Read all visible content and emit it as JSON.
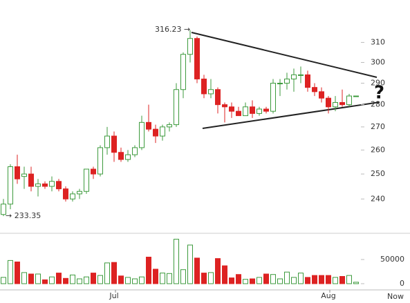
{
  "chart_data": {
    "type": "candlestick",
    "categories": [
      null,
      null,
      null,
      null,
      null,
      null,
      null,
      null,
      null,
      null,
      null,
      null,
      null,
      null,
      null,
      null,
      "Jul",
      null,
      null,
      null,
      null,
      null,
      null,
      null,
      null,
      null,
      null,
      null,
      null,
      null,
      null,
      null,
      null,
      null,
      null,
      null,
      null,
      null,
      null,
      null,
      null,
      null,
      null,
      null,
      null,
      null,
      null,
      "Aug",
      null,
      null,
      null,
      null
    ],
    "x_end_label": "Now",
    "open": [
      234,
      238,
      253,
      249,
      250,
      245,
      246,
      245,
      247,
      244,
      240,
      242,
      243,
      252,
      250,
      261,
      266,
      259,
      256,
      258,
      261,
      272,
      269,
      266,
      270,
      271,
      287,
      304,
      312,
      292,
      285,
      287,
      280,
      279,
      277,
      275,
      279,
      276,
      278,
      277,
      290,
      290,
      292,
      294,
      294,
      288,
      286,
      283,
      279,
      281,
      280,
      284
    ],
    "high": [
      240,
      254,
      258,
      253,
      253,
      248,
      247,
      249,
      248,
      245,
      243,
      244,
      252,
      253,
      262,
      270,
      268,
      261,
      260,
      262,
      275,
      280,
      271,
      271,
      272,
      290,
      305,
      316.23,
      313,
      294,
      292,
      288,
      281,
      281,
      279,
      281,
      282,
      279,
      279,
      292,
      292,
      295,
      297,
      298,
      296,
      290,
      288,
      284,
      284,
      287,
      285,
      284
    ],
    "low": [
      233.35,
      236,
      246,
      244,
      243,
      241,
      244,
      243,
      243,
      239,
      239,
      240,
      242,
      248,
      249,
      258,
      255,
      255,
      255,
      257,
      260,
      268,
      263,
      264,
      268,
      270,
      283,
      300,
      290,
      283,
      283,
      276,
      272,
      274,
      275,
      275,
      274,
      275,
      276,
      276,
      284,
      287,
      286,
      290,
      286,
      284,
      281,
      276,
      277,
      279,
      279,
      284
    ],
    "close": [
      238,
      253,
      248,
      250,
      245,
      246,
      245,
      247,
      244,
      240,
      242,
      243,
      252,
      250,
      261,
      266,
      259,
      256,
      258,
      261,
      272,
      269,
      266,
      270,
      271,
      287,
      304,
      312,
      292,
      285,
      287,
      280,
      279,
      277,
      275,
      279,
      276,
      278,
      277,
      290,
      290,
      292,
      294,
      294,
      288,
      286,
      283,
      279,
      281,
      280,
      284,
      284
    ],
    "volume": [
      13000,
      48000,
      45000,
      23000,
      20000,
      20000,
      8000,
      14000,
      22000,
      11000,
      18000,
      10000,
      14000,
      22000,
      17000,
      43000,
      44000,
      16000,
      13000,
      10000,
      14000,
      55000,
      30000,
      22000,
      21000,
      92000,
      29000,
      80000,
      53000,
      22000,
      23000,
      52000,
      37000,
      12000,
      19000,
      9000,
      10000,
      13000,
      20000,
      19000,
      10000,
      24000,
      13000,
      22000,
      13000,
      17000,
      17000,
      17000,
      13000,
      15000,
      17000,
      3000
    ],
    "up_color": "#3c9a3c",
    "down_color": "#dd2222",
    "log_scale": true,
    "ylim": [
      230,
      330
    ],
    "yticks": [
      240,
      250,
      260,
      270,
      280,
      290,
      300,
      310
    ],
    "volume_ylim": [
      0,
      100000
    ],
    "volume_yticks": [
      0,
      50000
    ],
    "annotations": [
      "316.23 →",
      "→ 233.35",
      "?"
    ]
  }
}
